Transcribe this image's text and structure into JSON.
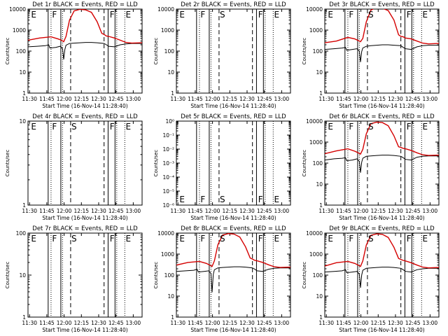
{
  "chart_data": {
    "type": "line",
    "xlabel": "Start Time (16-Nov-14 11:28:40)",
    "ylabel": "Counts/sec",
    "x_tick_labels": [
      "11:30",
      "11:45",
      "12:00",
      "12:15",
      "12:30",
      "12:45",
      "13:00"
    ],
    "x_tick_minutes": [
      1.33,
      16.33,
      31.33,
      46.33,
      61.33,
      76.33,
      91.33
    ],
    "xlim_minutes": [
      0,
      99
    ],
    "legend": "BLACK = Events, RED = LLD",
    "series_colors": {
      "events": "#000000",
      "lld": "#d40000"
    },
    "solid_markers_min": [
      17.5,
      28.5,
      69.5,
      75.5
    ],
    "dotted_markers_min": [
      20,
      30,
      77,
      84
    ],
    "dashed_markers_min": [
      37,
      66
    ],
    "region_letters": [
      {
        "text": "E",
        "min": 5
      },
      {
        "text": "F",
        "min": 23
      },
      {
        "text": "S",
        "min": 40
      },
      {
        "text": "F",
        "min": 73
      },
      {
        "text": "E",
        "min": 87
      }
    ],
    "panels": [
      {
        "title": "Det 1r BLACK = Events, RED = LLD",
        "scale": "log",
        "ylim": [
          1,
          10000
        ],
        "y_tick_labels": [
          "1",
          "10",
          "100",
          "1000",
          "10000"
        ],
        "letters_pos": "top",
        "letters": [
          "E",
          "F",
          "",
          "F",
          "E"
        ],
        "has_data": true,
        "lld": {
          "x": [
            0,
            10,
            20,
            26,
            29,
            31,
            33,
            36,
            40,
            45,
            50,
            55,
            60,
            64,
            66,
            68,
            70,
            75,
            80,
            85,
            90,
            99
          ],
          "y": [
            330,
            420,
            480,
            380,
            330,
            280,
            500,
            3000,
            8200,
            9800,
            9200,
            7000,
            2500,
            700,
            620,
            520,
            500,
            420,
            330,
            260,
            240,
            250
          ]
        },
        "events": {
          "x": [
            0,
            8,
            15,
            18,
            19,
            24,
            28,
            30,
            31,
            32,
            33,
            36,
            40,
            45,
            50,
            55,
            60,
            66,
            68,
            70,
            75,
            80,
            85,
            90,
            99
          ],
          "y": [
            160,
            170,
            180,
            200,
            140,
            150,
            170,
            130,
            40,
            120,
            190,
            230,
            240,
            250,
            260,
            260,
            250,
            230,
            200,
            170,
            160,
            200,
            220,
            230,
            230
          ]
        }
      },
      {
        "title": "Det 2r BLACK = Events, RED = LLD",
        "scale": "log",
        "ylim": [
          1,
          10000
        ],
        "y_tick_labels": [
          "1",
          "10",
          "100",
          "1000",
          "10000"
        ],
        "letters_pos": "top",
        "letters": [
          "E",
          "F",
          "S",
          "F",
          "E"
        ],
        "has_data": false
      },
      {
        "title": "Det 3r BLACK = Events, RED = LLD",
        "scale": "log",
        "ylim": [
          1,
          10000
        ],
        "y_tick_labels": [
          "1",
          "10",
          "100",
          "1000",
          "10000"
        ],
        "letters_pos": "top",
        "letters": [
          "E",
          "F",
          "S",
          "F",
          "E"
        ],
        "has_data": true,
        "lld": {
          "x": [
            0,
            10,
            20,
            26,
            29,
            31,
            33,
            36,
            40,
            45,
            50,
            55,
            60,
            64,
            66,
            68,
            70,
            75,
            80,
            85,
            90,
            99
          ],
          "y": [
            250,
            300,
            450,
            380,
            320,
            280,
            400,
            2500,
            9000,
            12000,
            11000,
            8500,
            3000,
            600,
            500,
            480,
            420,
            380,
            300,
            240,
            220,
            230
          ]
        },
        "events": {
          "x": [
            0,
            8,
            15,
            18,
            19,
            24,
            28,
            30,
            31,
            32,
            33,
            36,
            40,
            45,
            50,
            55,
            60,
            66,
            68,
            70,
            75,
            80,
            85,
            90,
            99
          ],
          "y": [
            120,
            130,
            140,
            150,
            110,
            120,
            130,
            100,
            30,
            95,
            140,
            170,
            180,
            190,
            200,
            200,
            190,
            180,
            150,
            130,
            120,
            160,
            180,
            190,
            190
          ]
        }
      },
      {
        "title": "Det 4r BLACK = Events, RED = LLD",
        "scale": "log",
        "ylim": [
          1,
          10
        ],
        "y_tick_labels": [
          "1",
          "10"
        ],
        "letters_pos": "top",
        "letters": [
          "E",
          "F",
          "S",
          "F",
          "E"
        ],
        "has_data": false
      },
      {
        "title": "Det 5r BLACK = Events, RED = LLD",
        "scale": "log",
        "ylim": [
          1e-06,
          1
        ],
        "y_tick_labels": [
          "10⁻⁶",
          "10⁻⁵",
          "10⁻⁴",
          "10⁻³",
          "10⁻²",
          "10⁻¹",
          "10⁰"
        ],
        "letters_pos": "bottom",
        "letters": [
          "E",
          "F",
          "S",
          "F",
          "E"
        ],
        "has_data": false
      },
      {
        "title": "Det 6r BLACK = Events, RED = LLD",
        "scale": "log",
        "ylim": [
          1,
          10000
        ],
        "y_tick_labels": [
          "1",
          "10",
          "100",
          "1000",
          "10000"
        ],
        "letters_pos": "top",
        "letters": [
          "E",
          "F",
          "S",
          "F",
          "E"
        ],
        "has_data": true,
        "lld": {
          "x": [
            0,
            10,
            20,
            26,
            29,
            31,
            33,
            36,
            40,
            45,
            50,
            55,
            60,
            64,
            66,
            68,
            70,
            75,
            80,
            85,
            90,
            99
          ],
          "y": [
            280,
            380,
            480,
            370,
            310,
            270,
            450,
            2500,
            7500,
            9000,
            8500,
            6000,
            2000,
            600,
            560,
            500,
            480,
            400,
            310,
            250,
            230,
            240
          ]
        },
        "events": {
          "x": [
            0,
            8,
            15,
            18,
            19,
            24,
            28,
            30,
            31,
            32,
            33,
            36,
            40,
            45,
            50,
            55,
            60,
            66,
            68,
            70,
            75,
            80,
            85,
            90,
            99
          ],
          "y": [
            140,
            160,
            170,
            180,
            130,
            140,
            160,
            120,
            35,
            110,
            170,
            210,
            220,
            230,
            240,
            240,
            230,
            210,
            180,
            150,
            140,
            190,
            210,
            220,
            220
          ]
        }
      },
      {
        "title": "Det 7r BLACK = Events, RED = LLD",
        "scale": "log",
        "ylim": [
          1,
          100
        ],
        "y_tick_labels": [
          "1",
          "10",
          "100"
        ],
        "letters_pos": "top",
        "letters": [
          "E",
          "F",
          "S",
          "F",
          "E"
        ],
        "has_data": false
      },
      {
        "title": "Det 8r BLACK = Events, RED = LLD",
        "scale": "log",
        "ylim": [
          1,
          10000
        ],
        "y_tick_labels": [
          "1",
          "10",
          "100",
          "1000",
          "10000"
        ],
        "letters_pos": "top",
        "letters": [
          "E",
          "F",
          "S",
          "F",
          "E"
        ],
        "has_data": true,
        "lld": {
          "x": [
            0,
            10,
            20,
            26,
            29,
            31,
            33,
            36,
            40,
            45,
            50,
            55,
            60,
            64,
            66,
            68,
            70,
            75,
            80,
            85,
            90,
            99
          ],
          "y": [
            300,
            400,
            450,
            360,
            300,
            260,
            480,
            2800,
            8000,
            9500,
            9000,
            6500,
            2200,
            650,
            580,
            500,
            480,
            400,
            310,
            250,
            230,
            240
          ]
        },
        "events": {
          "x": [
            0,
            8,
            15,
            18,
            19,
            24,
            28,
            30,
            31,
            32,
            33,
            36,
            40,
            45,
            50,
            55,
            60,
            66,
            68,
            70,
            75,
            80,
            85,
            90,
            99
          ],
          "y": [
            150,
            160,
            170,
            190,
            140,
            150,
            160,
            120,
            15,
            110,
            180,
            220,
            230,
            240,
            250,
            250,
            240,
            220,
            190,
            160,
            150,
            190,
            210,
            220,
            220
          ]
        }
      },
      {
        "title": "Det 9r BLACK = Events, RED = LLD",
        "scale": "log",
        "ylim": [
          1,
          10000
        ],
        "y_tick_labels": [
          "1",
          "10",
          "100",
          "1000",
          "10000"
        ],
        "letters_pos": "top",
        "letters": [
          "E",
          "F",
          "S",
          "F",
          "E"
        ],
        "has_data": true,
        "lld": {
          "x": [
            0,
            10,
            20,
            26,
            29,
            31,
            33,
            36,
            40,
            45,
            50,
            55,
            60,
            64,
            66,
            68,
            70,
            75,
            80,
            85,
            90,
            99
          ],
          "y": [
            270,
            390,
            450,
            360,
            300,
            260,
            470,
            2700,
            7800,
            9200,
            8700,
            6200,
            2100,
            620,
            560,
            500,
            470,
            390,
            300,
            240,
            220,
            230
          ]
        },
        "events": {
          "x": [
            0,
            8,
            15,
            18,
            19,
            24,
            28,
            30,
            31,
            32,
            33,
            36,
            40,
            45,
            50,
            55,
            60,
            66,
            68,
            70,
            75,
            80,
            85,
            90,
            99
          ],
          "y": [
            140,
            150,
            160,
            180,
            130,
            140,
            150,
            110,
            25,
            100,
            170,
            210,
            220,
            230,
            240,
            240,
            230,
            210,
            180,
            150,
            140,
            180,
            200,
            210,
            210
          ]
        }
      }
    ]
  }
}
